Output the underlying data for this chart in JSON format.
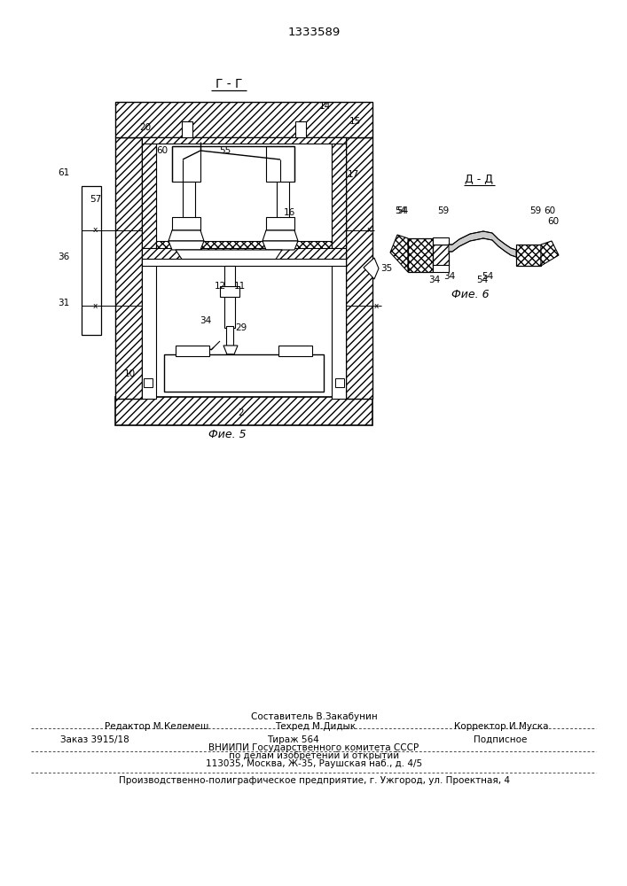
{
  "patent_number": "1333589",
  "bg_color": "#ffffff",
  "fig5_caption": "Фие. 5",
  "fig6_caption": "Фие. 6",
  "section_gg": "Г - Г",
  "section_dd": "Д - Д",
  "footer_composer": "Составитель В.Закабунин",
  "footer_editor": "Редактор М.Келемеш",
  "footer_techred": "Техред М.Дидык",
  "footer_corrector": "Корректор И.Муска",
  "footer_order": "Заказ 3915/18",
  "footer_tirazh": "Тираж 564",
  "footer_podp": "Подписное",
  "footer_vnipi": "ВНИИПИ Государственного комитета СССР",
  "footer_vnipi2": "по делам изобретений и открытий",
  "footer_addr": "113035, Москва, Ж-35, Раушская наб., д. 4/5",
  "footer_prod": "Производственно-полиграфическое предприятие, г. Ужгород, ул. Проектная, 4"
}
